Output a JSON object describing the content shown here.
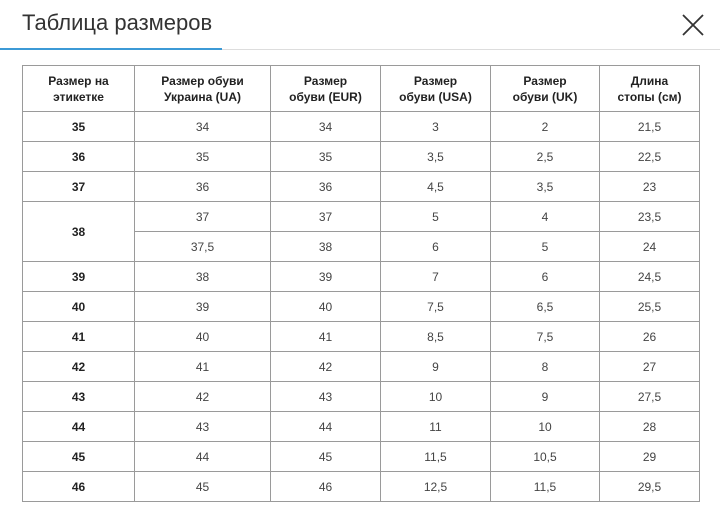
{
  "header": {
    "title": "Таблица размеров"
  },
  "table": {
    "headers": [
      "Размер на\nэтикетке",
      "Размер обуви\nУкраина (UA)",
      "Размер\nобуви (EUR)",
      "Размер\nобуви (USA)",
      "Размер\nобуви (UK)",
      "Длина\nстопы (см)"
    ],
    "rows": [
      {
        "size": "35",
        "values": [
          [
            "34",
            "34",
            "3",
            "2",
            "21,5"
          ]
        ]
      },
      {
        "size": "36",
        "values": [
          [
            "35",
            "35",
            "3,5",
            "2,5",
            "22,5"
          ]
        ]
      },
      {
        "size": "37",
        "values": [
          [
            "36",
            "36",
            "4,5",
            "3,5",
            "23"
          ]
        ]
      },
      {
        "size": "38",
        "values": [
          [
            "37",
            "37",
            "5",
            "4",
            "23,5"
          ],
          [
            "37,5",
            "38",
            "6",
            "5",
            "24"
          ]
        ]
      },
      {
        "size": "39",
        "values": [
          [
            "38",
            "39",
            "7",
            "6",
            "24,5"
          ]
        ]
      },
      {
        "size": "40",
        "values": [
          [
            "39",
            "40",
            "7,5",
            "6,5",
            "25,5"
          ]
        ]
      },
      {
        "size": "41",
        "values": [
          [
            "40",
            "41",
            "8,5",
            "7,5",
            "26"
          ]
        ]
      },
      {
        "size": "42",
        "values": [
          [
            "41",
            "42",
            "9",
            "8",
            "27"
          ]
        ]
      },
      {
        "size": "43",
        "values": [
          [
            "42",
            "43",
            "10",
            "9",
            "27,5"
          ]
        ]
      },
      {
        "size": "44",
        "values": [
          [
            "43",
            "44",
            "11",
            "10",
            "28"
          ]
        ]
      },
      {
        "size": "45",
        "values": [
          [
            "44",
            "45",
            "11,5",
            "10,5",
            "29"
          ]
        ]
      },
      {
        "size": "46",
        "values": [
          [
            "45",
            "46",
            "12,5",
            "11,5",
            "29,5"
          ]
        ]
      }
    ]
  }
}
